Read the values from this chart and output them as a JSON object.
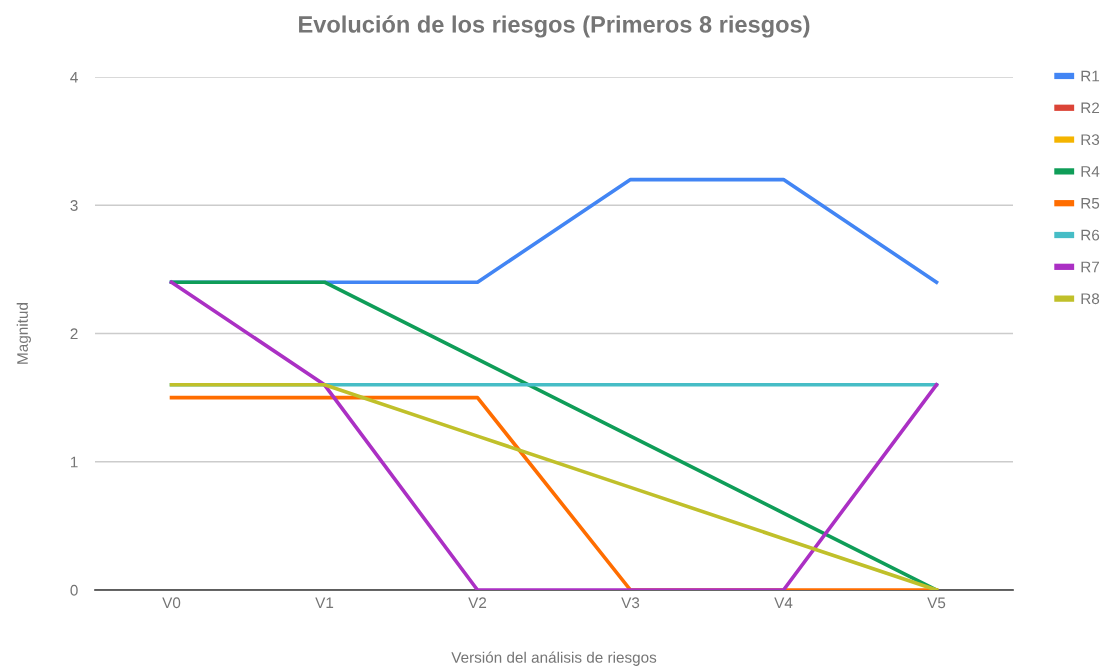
{
  "chart_data": {
    "type": "line",
    "title": "Evolución de los riesgos (Primeros 8 riesgos)",
    "xlabel": "Versión del análisis de riesgos",
    "ylabel": "Magnitud",
    "categories": [
      "V0",
      "V1",
      "V2",
      "V3",
      "V4",
      "V5"
    ],
    "series": [
      {
        "name": "R1",
        "color": "#4285f4",
        "values": [
          2.4,
          2.4,
          2.4,
          3.2,
          3.2,
          2.4
        ]
      },
      {
        "name": "R2",
        "color": "#db4437",
        "values": [
          null,
          null,
          null,
          null,
          null,
          null
        ]
      },
      {
        "name": "R3",
        "color": "#f4b400",
        "values": [
          null,
          null,
          null,
          null,
          null,
          null
        ]
      },
      {
        "name": "R4",
        "color": "#0f9d58",
        "values": [
          2.4,
          2.4,
          1.8,
          1.2,
          0.6,
          0
        ]
      },
      {
        "name": "R5",
        "color": "#ff6d00",
        "values": [
          1.5,
          1.5,
          1.5,
          0,
          0,
          0
        ]
      },
      {
        "name": "R6",
        "color": "#46bdc6",
        "values": [
          1.6,
          1.6,
          1.6,
          1.6,
          1.6,
          1.6
        ]
      },
      {
        "name": "R7",
        "color": "#ab30c4",
        "values": [
          2.4,
          1.6,
          0,
          0,
          0,
          1.6
        ]
      },
      {
        "name": "R8",
        "color": "#c0c02a",
        "values": [
          1.6,
          1.6,
          1.2,
          0.8,
          0.4,
          0
        ]
      }
    ],
    "ylim": [
      0,
      4
    ],
    "yticks": [
      0,
      1,
      2,
      3,
      4
    ],
    "grid": "y",
    "legend": "right",
    "marker": "none",
    "line_style": "solid"
  }
}
